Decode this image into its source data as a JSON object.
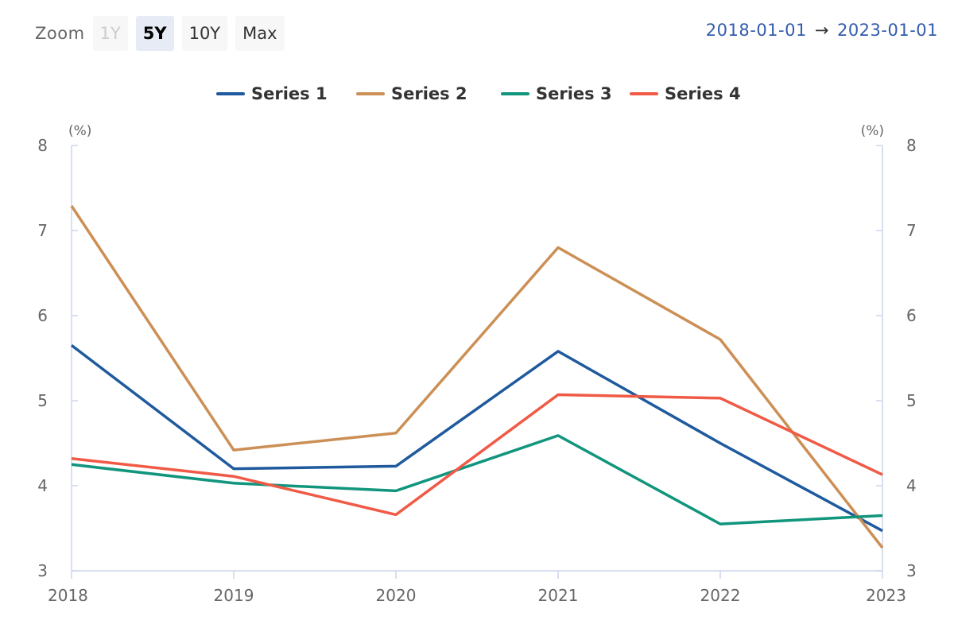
{
  "toolbar": {
    "zoom_label": "Zoom",
    "buttons": [
      {
        "label": "1Y",
        "state": "disabled"
      },
      {
        "label": "5Y",
        "state": "active"
      },
      {
        "label": "10Y",
        "state": "normal"
      },
      {
        "label": "Max",
        "state": "normal"
      }
    ]
  },
  "range": {
    "from": "2018-01-01",
    "arrow": "→",
    "to": "2023-01-01"
  },
  "chart_data": {
    "type": "line",
    "x": [
      "2018",
      "2019",
      "2020",
      "2021",
      "2022",
      "2023"
    ],
    "y_unit_left": "(%)",
    "y_unit_right": "(%)",
    "ylim": [
      3,
      8
    ],
    "yticks": [
      "3",
      "4",
      "5",
      "6",
      "7",
      "8"
    ],
    "legend_position": "top-center",
    "grid": false,
    "series": [
      {
        "name": "Series 1",
        "color": "#1f5a9e",
        "values": [
          5.65,
          4.2,
          4.23,
          5.58,
          4.5,
          3.47
        ]
      },
      {
        "name": "Series 2",
        "color": "#cc8f55",
        "values": [
          7.29,
          4.42,
          4.62,
          6.8,
          5.72,
          3.27
        ]
      },
      {
        "name": "Series 3",
        "color": "#11957d",
        "values": [
          4.25,
          4.03,
          3.94,
          4.59,
          3.55,
          3.65
        ]
      },
      {
        "name": "Series 4",
        "color": "#f05a46",
        "values": [
          4.32,
          4.11,
          3.66,
          5.07,
          5.03,
          4.13
        ]
      }
    ]
  }
}
